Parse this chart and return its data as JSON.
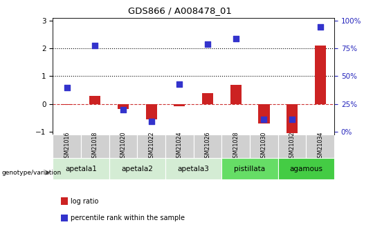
{
  "title": "GDS866 / A008478_01",
  "samples": [
    "GSM21016",
    "GSM21018",
    "GSM21020",
    "GSM21022",
    "GSM21024",
    "GSM21026",
    "GSM21028",
    "GSM21030",
    "GSM21032",
    "GSM21034"
  ],
  "log_ratio": [
    -0.03,
    0.28,
    -0.18,
    -0.55,
    -0.08,
    0.38,
    0.68,
    -0.7,
    -1.05,
    2.1
  ],
  "percentile_rank": [
    0.6,
    2.1,
    -0.2,
    -0.62,
    0.72,
    2.15,
    2.35,
    -0.55,
    -0.55,
    2.78
  ],
  "ylim": [
    -1.1,
    3.1
  ],
  "yticks_left": [
    -1,
    0,
    1,
    2,
    3
  ],
  "yticks_right_vals": [
    0,
    25,
    50,
    75,
    100
  ],
  "yticks_right_pos": [
    -1.0,
    0.0,
    1.0,
    2.0,
    3.0
  ],
  "bar_color": "#cc2222",
  "dot_color": "#3333cc",
  "groups": [
    {
      "label": "apetala1",
      "cols": [
        0,
        1
      ],
      "color": "#d4ecd4"
    },
    {
      "label": "apetala2",
      "cols": [
        2,
        3
      ],
      "color": "#d4ecd4"
    },
    {
      "label": "apetala3",
      "cols": [
        4,
        5
      ],
      "color": "#d4ecd4"
    },
    {
      "label": "pistillata",
      "cols": [
        6,
        7
      ],
      "color": "#66dd66"
    },
    {
      "label": "agamous",
      "cols": [
        8,
        9
      ],
      "color": "#44cc44"
    }
  ],
  "genotype_label": "genotype/variation",
  "legend_items": [
    "log ratio",
    "percentile rank within the sample"
  ],
  "legend_colors": [
    "#cc2222",
    "#3333cc"
  ],
  "bar_width": 0.4,
  "dot_size": 28
}
